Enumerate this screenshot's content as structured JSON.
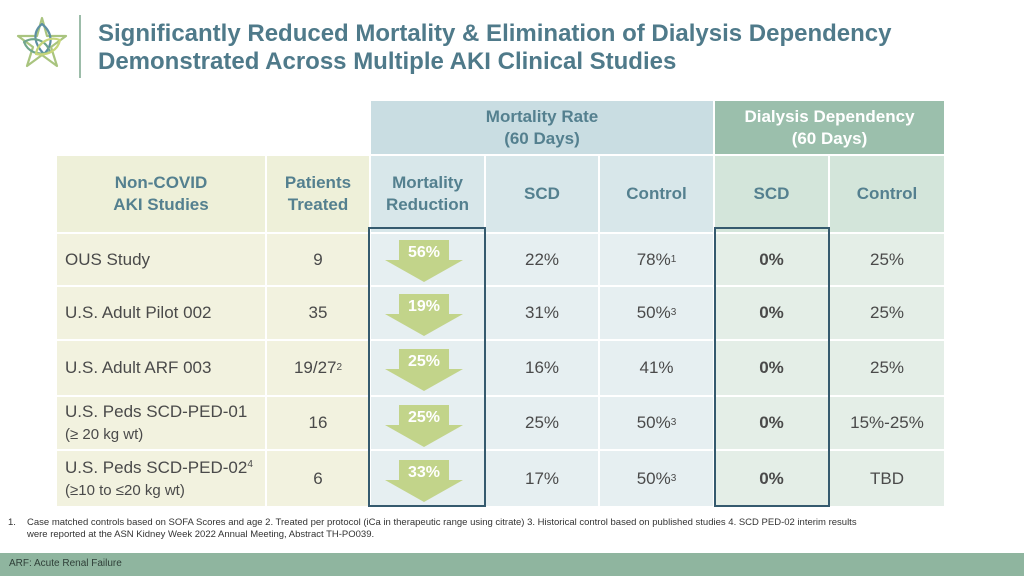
{
  "title": {
    "line1": "Significantly Reduced Mortality & Elimination of Dialysis Dependency",
    "line2": "Demonstrated Across Multiple AKI Clinical Studies"
  },
  "logo_icon": "star-flower-logo-icon",
  "group_headers": {
    "mortality": {
      "line1": "Mortality Rate",
      "line2": "(60 Days)"
    },
    "dialysis": {
      "line1": "Dialysis Dependency",
      "line2": "(60 Days)"
    }
  },
  "columns": {
    "study": {
      "line1": "Non-COVID",
      "line2": "AKI Studies"
    },
    "patients": {
      "line1": "Patients",
      "line2": "Treated"
    },
    "reduction": {
      "line1": "Mortality",
      "line2": "Reduction"
    },
    "mort_scd": "SCD",
    "mort_control": "Control",
    "dial_scd": "SCD",
    "dial_control": "Control"
  },
  "rows": [
    {
      "study": "OUS Study",
      "study_sub": "",
      "study_sup": "",
      "patients": "9",
      "patients_sup": "",
      "reduction": "56%",
      "mort_scd": "22%",
      "mort_control": "78%",
      "mort_control_sup": "1",
      "dial_scd": "0%",
      "dial_control": "25%"
    },
    {
      "study": "U.S. Adult Pilot 002",
      "study_sub": "",
      "study_sup": "",
      "patients": "35",
      "patients_sup": "",
      "reduction": "19%",
      "mort_scd": "31%",
      "mort_control": "50%",
      "mort_control_sup": "3",
      "dial_scd": "0%",
      "dial_control": "25%"
    },
    {
      "study": "U.S. Adult ARF 003",
      "study_sub": "",
      "study_sup": "",
      "patients": "19/27",
      "patients_sup": "2",
      "reduction": "25%",
      "mort_scd": "16%",
      "mort_control": "41%",
      "mort_control_sup": "",
      "dial_scd": "0%",
      "dial_control": "25%"
    },
    {
      "study": "U.S. Peds SCD-PED-01",
      "study_sub": "(≥ 20 kg wt)",
      "study_sup": "",
      "patients": "16",
      "patients_sup": "",
      "reduction": "25%",
      "mort_scd": "25%",
      "mort_control": "50%",
      "mort_control_sup": "3",
      "dial_scd": "0%",
      "dial_control": "15%-25%"
    },
    {
      "study": "U.S. Peds SCD-PED-02",
      "study_sub": "(≥10 to ≤20 kg wt)",
      "study_sup": "4",
      "patients": "6",
      "patients_sup": "",
      "reduction": "33%",
      "mort_scd": "17%",
      "mort_control": "50%",
      "mort_control_sup": "3",
      "dial_scd": "0%",
      "dial_control": "TBD"
    }
  ],
  "footnotes": {
    "num": "1.",
    "line1": "Case matched controls based on SOFA Scores and age  2. Treated per protocol (iCa in therapeutic range using citrate)  3. Historical control based on published studies  4.  SCD PED-02 interim results",
    "line2": "were reported at the ASN Kidney Week 2022 Annual Meeting, Abstract TH-PO039."
  },
  "footer": "ARF: Acute Renal Failure",
  "colors": {
    "title": "#4f7a8a",
    "mortality_header": "#c9dde2",
    "dialysis_header": "#9bbfac",
    "arrow": "#c2d48a",
    "outline": "#355a6e",
    "footer_bar": "#8fb59f"
  }
}
